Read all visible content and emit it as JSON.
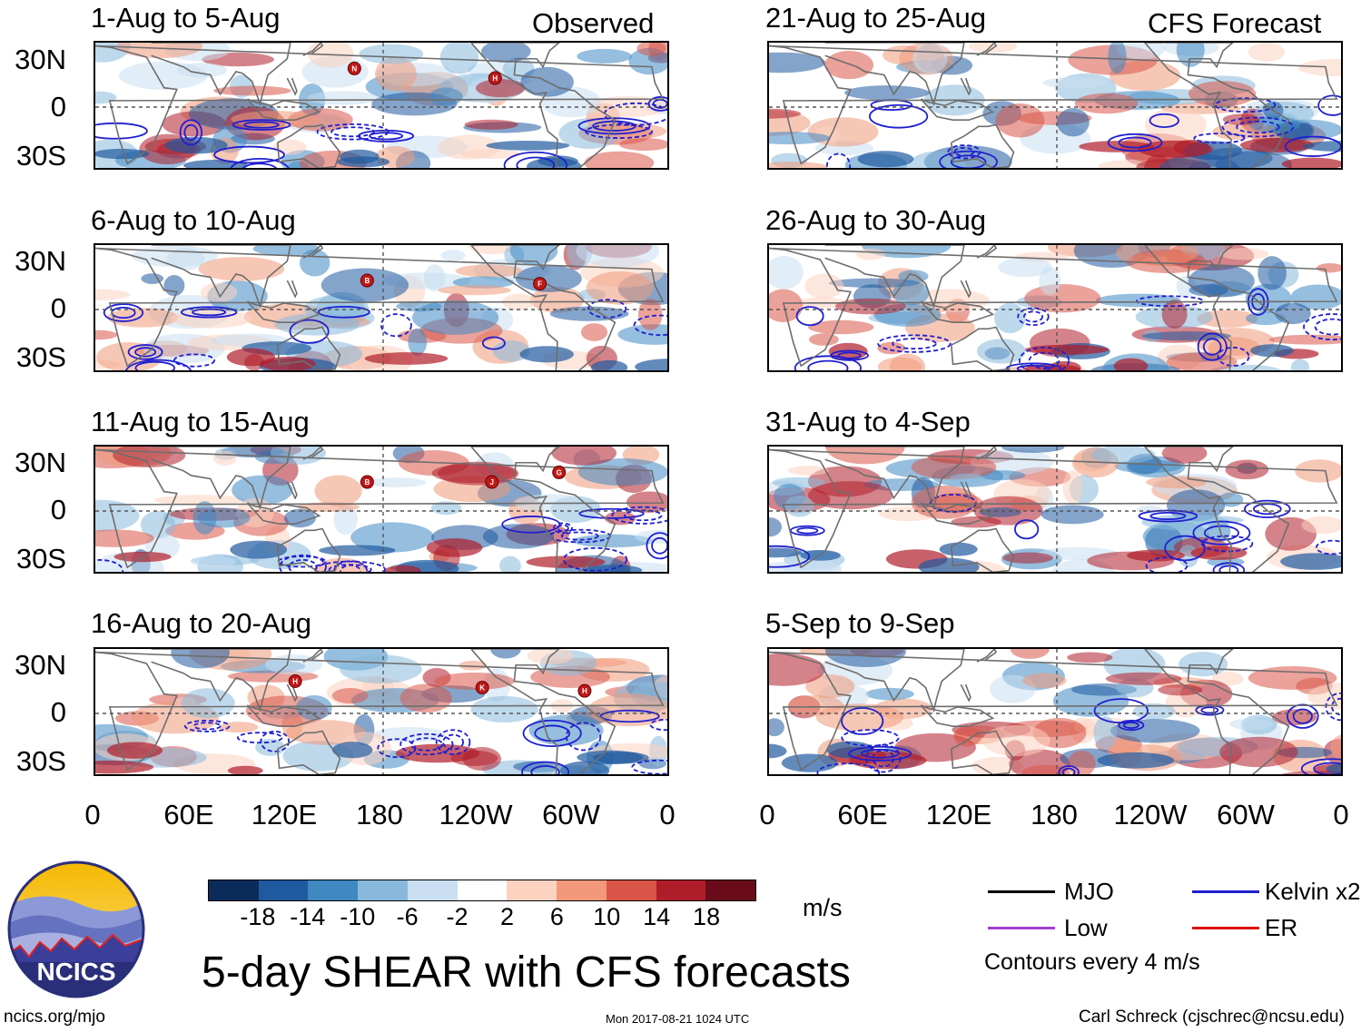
{
  "left_header": "Observed",
  "right_header": "CFS Forecast",
  "panels_left": [
    {
      "period": "1-Aug to 5-Aug",
      "storms": [
        "N",
        "H"
      ]
    },
    {
      "period": "6-Aug to 10-Aug",
      "storms": [
        "B",
        "F"
      ]
    },
    {
      "period": "11-Aug to 15-Aug",
      "storms": [
        "B",
        "J",
        "G"
      ]
    },
    {
      "period": "16-Aug to 20-Aug",
      "storms": [
        "H",
        "K",
        "H"
      ]
    }
  ],
  "panels_right": [
    {
      "period": "21-Aug to 25-Aug"
    },
    {
      "period": "26-Aug to 30-Aug"
    },
    {
      "period": "31-Aug to 4-Sep"
    },
    {
      "period": "5-Sep to 9-Sep"
    }
  ],
  "y_ticks": [
    "30N",
    "0",
    "30S"
  ],
  "x_ticks": [
    "0",
    "60E",
    "120E",
    "180",
    "120W",
    "60W",
    "0"
  ],
  "colorbar": {
    "labels": [
      "-18",
      "-14",
      "-10",
      "-6",
      "-2",
      "2",
      "6",
      "10",
      "14",
      "18"
    ],
    "colors": [
      "#0b2c5a",
      "#1f5aa0",
      "#3f88c2",
      "#88b9dc",
      "#c9def0",
      "#ffffff",
      "#fcd2c0",
      "#f1997a",
      "#d95548",
      "#b01d2a",
      "#690b18"
    ],
    "units": "m/s"
  },
  "title": "5-day SHEAR with CFS forecasts",
  "legend": {
    "mjo": {
      "label": "MJO",
      "color": "#000000"
    },
    "kelvin": {
      "label": "Kelvin x2",
      "color": "#1f1fd0"
    },
    "low": {
      "label": "Low",
      "color": "#a040d0"
    },
    "er": {
      "label": "ER",
      "color": "#e01010"
    },
    "note": "Contours every 4 m/s"
  },
  "logo_text": "NCICS",
  "footer": {
    "url": "ncics.org/mjo",
    "timestamp": "Mon 2017-08-21 1024 UTC",
    "credit": "Carl Schreck (cjschrec@ncsu.edu)"
  }
}
